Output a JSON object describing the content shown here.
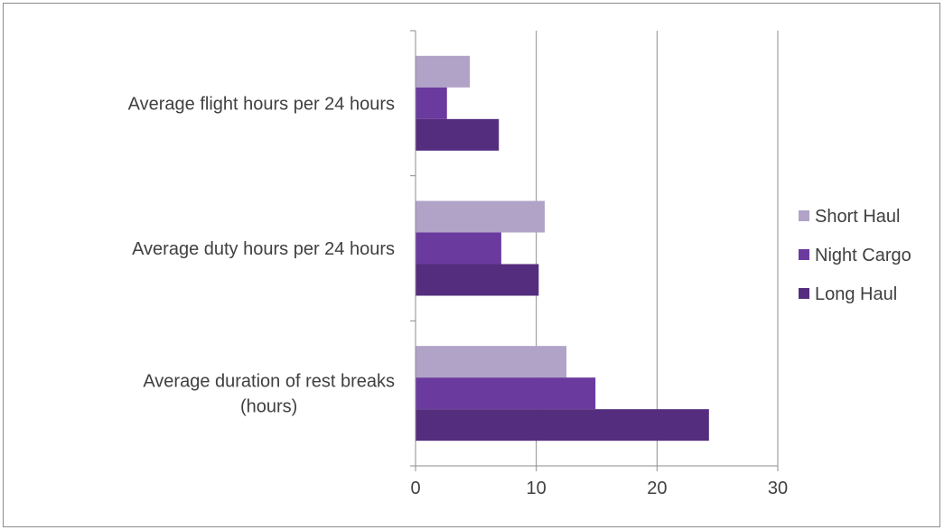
{
  "chart_data": {
    "type": "bar",
    "orientation": "horizontal",
    "categories": [
      "Average flight hours per 24 hours",
      "Average duty hours per 24 hours",
      "Average duration of rest breaks (hours)"
    ],
    "category_label_lines": [
      [
        "Average flight hours per 24 hours"
      ],
      [
        "Average duty hours per 24 hours"
      ],
      [
        "Average duration of rest breaks",
        "(hours)"
      ]
    ],
    "series": [
      {
        "name": "Short Haul",
        "color": "#b1a3c8",
        "values": [
          4.5,
          10.7,
          12.5
        ]
      },
      {
        "name": "Night Cargo",
        "color": "#6b3a9e",
        "values": [
          2.6,
          7.1,
          14.9
        ]
      },
      {
        "name": "Long Haul",
        "color": "#552d7e",
        "values": [
          6.9,
          10.2,
          24.3
        ]
      }
    ],
    "xlim": [
      0,
      30
    ],
    "x_ticks": [
      0,
      10,
      20,
      30
    ],
    "grid": "vertical",
    "legend_position": "right",
    "title": "",
    "xlabel": "",
    "ylabel": ""
  }
}
